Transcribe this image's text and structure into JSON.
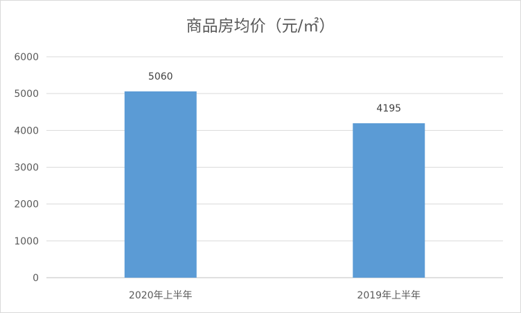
{
  "chart_data": {
    "type": "bar",
    "title": "商品房均价（元/㎡）",
    "xlabel": "",
    "ylabel": "",
    "categories": [
      "2020年上半年",
      "2019年上半年"
    ],
    "values": [
      5060,
      4195
    ],
    "data_labels": [
      "5060",
      "4195"
    ],
    "ylim": [
      0,
      6000
    ],
    "yticks": [
      0,
      1000,
      2000,
      3000,
      4000,
      5000,
      6000
    ],
    "grid": true,
    "legend": "none",
    "bar_color": "#5b9bd5"
  }
}
